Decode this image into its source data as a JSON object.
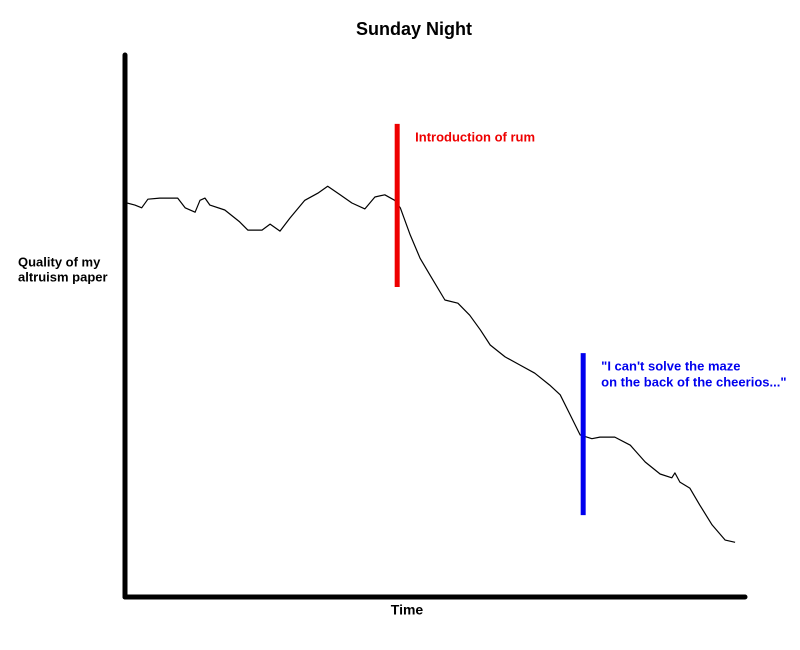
{
  "chart_data": {
    "type": "line",
    "title": "Sunday Night",
    "xlabel": "Time",
    "ylabel": [
      "Quality of my",
      "altruism paper"
    ],
    "xlim": [
      0,
      100
    ],
    "ylim": [
      0,
      100
    ],
    "series": [
      {
        "color": "#000000",
        "x": [
          0.3,
          1.6,
          2.7,
          3.7,
          5.6,
          8.5,
          9.7,
          11.3,
          12.1,
          12.9,
          13.7,
          16.1,
          18.5,
          19.8,
          22.1,
          23.4,
          25.0,
          26.6,
          29.0,
          31.1,
          32.7,
          34.7,
          36.6,
          38.7,
          40.3,
          41.9,
          43.5,
          44.4,
          46.0,
          47.6,
          49.2,
          51.6,
          53.7,
          55.6,
          57.3,
          58.9,
          61.3,
          63.7,
          66.1,
          68.5,
          70.2,
          71.8,
          73.4,
          75.3,
          76.6,
          79.0,
          81.5,
          83.9,
          86.3,
          88.2,
          88.7,
          89.5,
          91.1,
          92.7,
          94.7,
          96.8,
          98.4
        ],
        "values": [
          72.7,
          72.3,
          71.8,
          73.4,
          73.6,
          73.6,
          71.8,
          71.0,
          73.2,
          73.6,
          72.3,
          71.4,
          69.2,
          67.7,
          67.7,
          68.8,
          67.5,
          69.9,
          73.2,
          74.5,
          75.8,
          74.2,
          72.7,
          71.6,
          73.8,
          74.2,
          73.2,
          71.8,
          66.8,
          62.5,
          59.4,
          54.8,
          54.2,
          52.0,
          49.3,
          46.5,
          44.3,
          42.8,
          41.3,
          39.1,
          37.3,
          33.6,
          29.9,
          29.2,
          29.5,
          29.5,
          28.0,
          24.9,
          22.7,
          22.0,
          22.9,
          21.2,
          20.1,
          17.0,
          13.3,
          10.5,
          10.1
        ]
      }
    ],
    "annotations": [
      {
        "lines": [
          "Introduction of  rum"
        ],
        "x": 43.9,
        "y_range": [
          57.2,
          87.3
        ],
        "color": "#ee0000"
      },
      {
        "lines": [
          "\"I can't solve the maze",
          "on the back of the cheerios...\""
        ],
        "x": 73.9,
        "y_range": [
          15.1,
          45.0
        ],
        "color": "#0000ee"
      }
    ]
  }
}
